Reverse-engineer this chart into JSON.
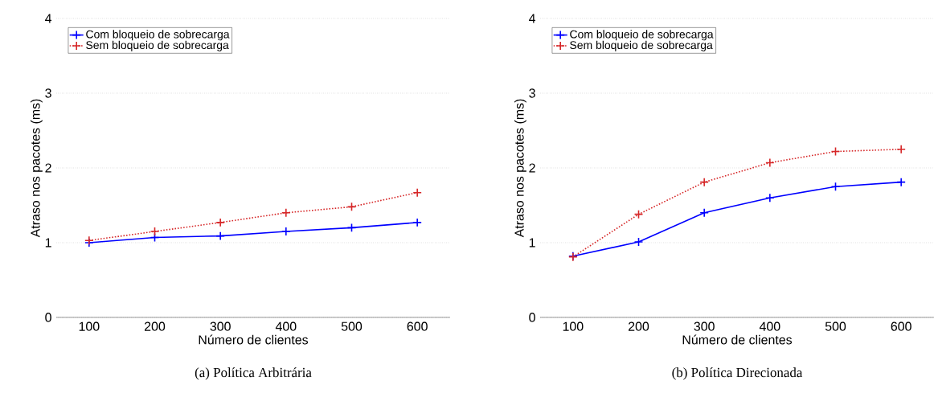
{
  "chart_data": [
    {
      "type": "line",
      "title": "(a) Política Arbitrária",
      "xlabel": "Número de clientes",
      "ylabel": "Atraso nos pacotes (ms)",
      "x": [
        100,
        200,
        300,
        400,
        500,
        600
      ],
      "xlim": [
        50,
        650
      ],
      "xticks": [
        100,
        200,
        300,
        400,
        500,
        600
      ],
      "ylim": [
        0,
        4
      ],
      "yticks": [
        0,
        1,
        2,
        3,
        4
      ],
      "grid": "y",
      "legend": "top left",
      "marker": "cross",
      "series": [
        {
          "name": "Com bloqueio de sobrecarga",
          "color": "#0000ff",
          "line_style": "solid",
          "values": [
            1.0,
            1.07,
            1.09,
            1.15,
            1.2,
            1.27
          ]
        },
        {
          "name": "Sem bloqueio de sobrecarga",
          "color": "#d62728",
          "line_style": "dotted",
          "values": [
            1.03,
            1.15,
            1.27,
            1.4,
            1.48,
            1.67
          ]
        }
      ]
    },
    {
      "type": "line",
      "title": "(b) Política Direcionada",
      "xlabel": "Número de clientes",
      "ylabel": "Atraso nos pacotes (ms)",
      "x": [
        100,
        200,
        300,
        400,
        500,
        600
      ],
      "xlim": [
        50,
        650
      ],
      "xticks": [
        100,
        200,
        300,
        400,
        500,
        600
      ],
      "ylim": [
        0,
        4
      ],
      "yticks": [
        0,
        1,
        2,
        3,
        4
      ],
      "grid": "y",
      "legend": "top left",
      "marker": "cross",
      "series": [
        {
          "name": "Com bloqueio de sobrecarga",
          "color": "#0000ff",
          "line_style": "solid",
          "values": [
            0.82,
            1.01,
            1.4,
            1.6,
            1.75,
            1.81
          ]
        },
        {
          "name": "Sem bloqueio de sobrecarga",
          "color": "#d62728",
          "line_style": "dotted",
          "values": [
            0.81,
            1.38,
            1.81,
            2.07,
            2.22,
            2.25
          ]
        }
      ]
    }
  ]
}
